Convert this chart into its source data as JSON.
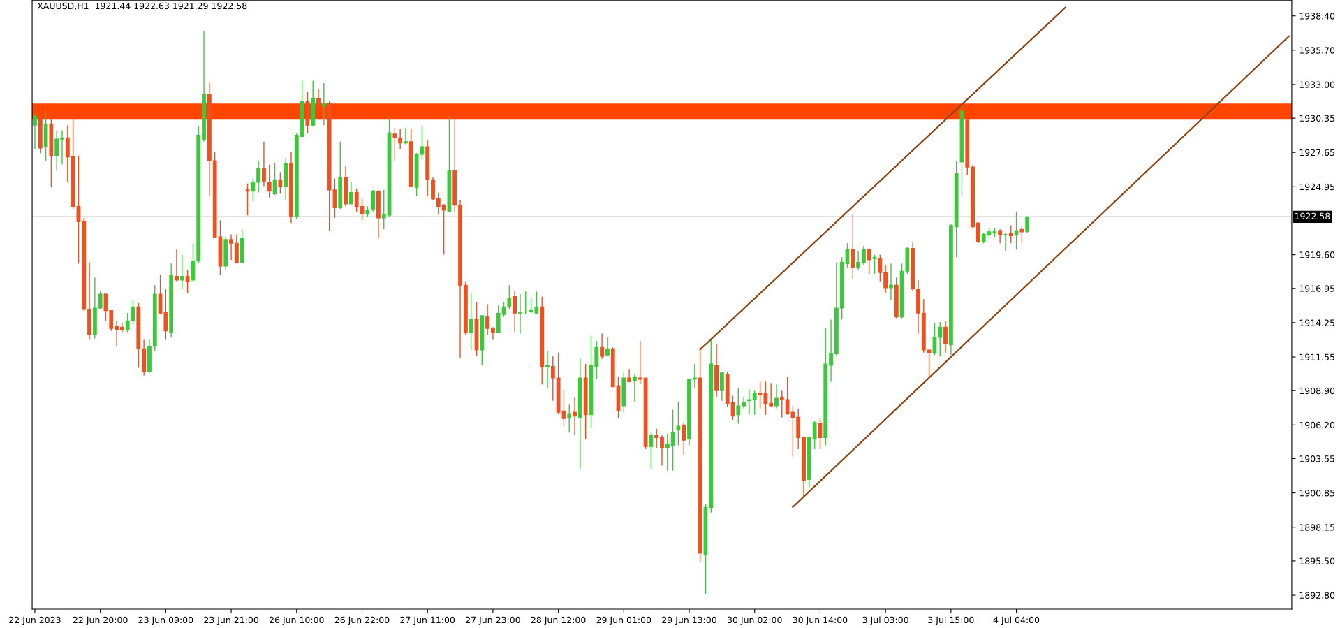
{
  "chart_data": {
    "type": "candlestick",
    "title": "XAUUSD,H1  1921.44 1922.63 1921.29 1922.58",
    "categories": [
      "22 Jun 2023",
      null,
      null,
      null,
      null,
      null,
      null,
      null,
      null,
      null,
      null,
      null,
      "22 Jun 20:00",
      null,
      null,
      null,
      null,
      null,
      null,
      null,
      null,
      null,
      null,
      null,
      "23 Jun 09:00",
      null,
      null,
      null,
      null,
      null,
      null,
      null,
      null,
      null,
      null,
      null,
      "23 Jun 21:00",
      null,
      null,
      null,
      null,
      null,
      null,
      null,
      null,
      null,
      null,
      null,
      "26 Jun 10:00",
      null,
      null,
      null,
      null,
      null,
      null,
      null,
      null,
      null,
      null,
      null,
      "26 Jun 22:00",
      null,
      null,
      null,
      null,
      null,
      null,
      null,
      null,
      null,
      null,
      null,
      "27 Jun 11:00",
      null,
      null,
      null,
      null,
      null,
      null,
      null,
      null,
      null,
      null,
      null,
      "27 Jun 23:00",
      null,
      null,
      null,
      null,
      null,
      null,
      null,
      null,
      null,
      null,
      null,
      "28 Jun 12:00",
      null,
      null,
      null,
      null,
      null,
      null,
      null,
      null,
      null,
      null,
      null,
      "29 Jun 01:00",
      null,
      null,
      null,
      null,
      null,
      null,
      null,
      null,
      null,
      null,
      null,
      "29 Jun 13:00",
      null,
      null,
      null,
      null,
      null,
      null,
      null,
      null,
      null,
      null,
      null,
      "30 Jun 02:00",
      null,
      null,
      null,
      null,
      null,
      null,
      null,
      null,
      null,
      null,
      null,
      "30 Jun 14:00",
      null,
      null,
      null,
      null,
      null,
      null,
      null,
      null,
      null,
      null,
      null,
      "3 Jul 03:00",
      null,
      null,
      null,
      null,
      null,
      null,
      null,
      null,
      null,
      null,
      null,
      "3 Jul 15:00",
      null,
      null,
      null,
      null,
      null,
      null,
      null,
      null,
      null,
      null,
      null,
      "4 Jul 04:00",
      null,
      null,
      null,
      null,
      null,
      null,
      null,
      null,
      null,
      null,
      null,
      null,
      null,
      null,
      null,
      null,
      null,
      null,
      null,
      null,
      null,
      null,
      null,
      null,
      null,
      null,
      null,
      null,
      null,
      null,
      null,
      null,
      null,
      null,
      null,
      null,
      null,
      null,
      null,
      null,
      null,
      null,
      null,
      null,
      null,
      null,
      null,
      null,
      null,
      null
    ],
    "ohlc": [
      [
        1929.8,
        1930.7,
        1927.9,
        1930.5
      ],
      [
        1930.5,
        1931.5,
        1927.6,
        1928.0
      ],
      [
        1928.1,
        1930.9,
        1927.0,
        1929.9
      ],
      [
        1929.9,
        1931.5,
        1924.9,
        1927.4
      ],
      [
        1927.4,
        1929.4,
        1926.2,
        1928.7
      ],
      [
        1928.7,
        1929.4,
        1926.7,
        1928.8
      ],
      [
        1928.8,
        1929.8,
        1925.3,
        1927.3
      ],
      [
        1927.3,
        1930.9,
        1923.2,
        1923.4
      ],
      [
        1923.4,
        1927.4,
        1918.9,
        1922.2
      ],
      [
        1922.2,
        1922.5,
        1915.2,
        1915.3
      ],
      [
        1915.3,
        1919.0,
        1912.9,
        1913.3
      ],
      [
        1913.3,
        1917.8,
        1913.0,
        1915.4
      ],
      [
        1915.4,
        1916.7,
        1915.3,
        1916.5
      ],
      [
        1916.5,
        1916.6,
        1914.4,
        1915.2
      ],
      [
        1915.2,
        1915.2,
        1913.6,
        1913.8
      ],
      [
        1914.0,
        1914.4,
        1912.4,
        1913.7
      ],
      [
        1913.9,
        1914.2,
        1913.5,
        1913.7
      ],
      [
        1913.7,
        1915.0,
        1913.5,
        1914.4
      ],
      [
        1914.4,
        1916.0,
        1914.1,
        1915.5
      ],
      [
        1915.5,
        1915.8,
        1910.7,
        1912.2
      ],
      [
        1912.2,
        1912.9,
        1910.1,
        1910.4
      ],
      [
        1910.4,
        1912.9,
        1910.3,
        1912.4
      ],
      [
        1912.4,
        1917.2,
        1912.0,
        1916.5
      ],
      [
        1916.5,
        1918.0,
        1914.9,
        1915.0
      ],
      [
        1915.1,
        1916.9,
        1912.9,
        1913.6
      ],
      [
        1913.5,
        1918.9,
        1913.1,
        1918.0
      ],
      [
        1917.9,
        1920.0,
        1917.5,
        1917.6
      ],
      [
        1917.6,
        1919.6,
        1916.9,
        1917.9
      ],
      [
        1917.9,
        1918.4,
        1916.6,
        1917.5
      ],
      [
        1917.6,
        1920.5,
        1917.5,
        1919.1
      ],
      [
        1919.1,
        1929.7,
        1918.9,
        1929.0
      ],
      [
        1928.7,
        1937.2,
        1928.5,
        1932.2
      ],
      [
        1932.2,
        1933.1,
        1924.2,
        1927.0
      ],
      [
        1927.0,
        1927.7,
        1920.9,
        1921.0
      ],
      [
        1921.0,
        1922.3,
        1918.0,
        1918.7
      ],
      [
        1918.7,
        1921.0,
        1918.4,
        1920.8
      ],
      [
        1920.8,
        1921.2,
        1919.2,
        1920.5
      ],
      [
        1920.5,
        1921.2,
        1918.9,
        1919.0
      ],
      [
        1919.0,
        1921.6,
        1919.0,
        1920.9
      ],
      [
        1924.7,
        1925.2,
        1922.7,
        1924.6
      ],
      [
        1924.6,
        1925.6,
        1923.8,
        1925.3
      ],
      [
        1925.3,
        1927.0,
        1924.5,
        1926.4
      ],
      [
        1926.4,
        1928.5,
        1925.0,
        1925.4
      ],
      [
        1925.3,
        1926.7,
        1924.1,
        1924.6
      ],
      [
        1924.4,
        1926.8,
        1924.3,
        1925.5
      ],
      [
        1925.5,
        1926.1,
        1924.4,
        1925.0
      ],
      [
        1925.0,
        1927.2,
        1923.9,
        1926.8
      ],
      [
        1926.8,
        1927.7,
        1922.1,
        1922.6
      ],
      [
        1922.6,
        1929.2,
        1922.4,
        1929.0
      ],
      [
        1928.9,
        1933.3,
        1928.9,
        1931.7
      ],
      [
        1931.7,
        1932.4,
        1929.2,
        1929.8
      ],
      [
        1929.8,
        1933.3,
        1929.7,
        1931.9
      ],
      [
        1931.9,
        1932.6,
        1931.0,
        1931.3
      ],
      [
        1931.3,
        1933.1,
        1929.8,
        1931.5
      ],
      [
        1931.5,
        1931.7,
        1921.5,
        1924.7
      ],
      [
        1924.7,
        1925.6,
        1922.5,
        1923.3
      ],
      [
        1923.3,
        1928.5,
        1923.2,
        1925.7
      ],
      [
        1925.7,
        1926.6,
        1923.4,
        1923.6
      ],
      [
        1923.6,
        1925.3,
        1923.6,
        1924.5
      ],
      [
        1924.5,
        1924.8,
        1923.0,
        1923.4
      ],
      [
        1923.4,
        1924.0,
        1922.3,
        1922.8
      ],
      [
        1922.8,
        1923.4,
        1922.6,
        1923.1
      ],
      [
        1923.2,
        1924.7,
        1923.0,
        1924.6
      ],
      [
        1924.6,
        1924.7,
        1920.9,
        1922.5
      ],
      [
        1922.5,
        1924.7,
        1921.6,
        1922.8
      ],
      [
        1922.7,
        1930.4,
        1922.6,
        1929.2
      ],
      [
        1929.1,
        1929.6,
        1927.0,
        1928.8
      ],
      [
        1928.8,
        1929.5,
        1927.9,
        1928.4
      ],
      [
        1928.4,
        1929.6,
        1928.3,
        1928.5
      ],
      [
        1928.5,
        1929.5,
        1924.9,
        1925.0
      ],
      [
        1924.9,
        1927.6,
        1924.2,
        1927.5
      ],
      [
        1927.5,
        1929.7,
        1927.1,
        1928.1
      ],
      [
        1928.1,
        1928.6,
        1924.2,
        1925.5
      ],
      [
        1925.5,
        1925.7,
        1923.9,
        1924.0
      ],
      [
        1924.0,
        1924.5,
        1922.8,
        1923.4
      ],
      [
        1923.5,
        1923.6,
        1919.6,
        1923.1
      ],
      [
        1923.0,
        1930.5,
        1923.0,
        1926.2
      ],
      [
        1926.2,
        1930.6,
        1922.9,
        1923.5
      ],
      [
        1923.5,
        1923.9,
        1911.5,
        1917.2
      ],
      [
        1917.2,
        1917.5,
        1913.3,
        1913.5
      ],
      [
        1913.5,
        1916.6,
        1912.1,
        1914.5
      ],
      [
        1914.5,
        1915.9,
        1911.6,
        1912.1
      ],
      [
        1912.1,
        1914.8,
        1910.9,
        1914.8
      ],
      [
        1914.7,
        1915.7,
        1913.3,
        1913.8
      ],
      [
        1913.8,
        1913.9,
        1912.9,
        1913.5
      ],
      [
        1913.5,
        1915.6,
        1913.5,
        1915.0
      ],
      [
        1914.9,
        1915.9,
        1914.7,
        1915.5
      ],
      [
        1915.5,
        1917.2,
        1915.3,
        1916.2
      ],
      [
        1916.3,
        1916.7,
        1913.5,
        1915.0
      ],
      [
        1915.0,
        1916.5,
        1913.4,
        1915.1
      ],
      [
        1915.1,
        1916.7,
        1914.9,
        1915.1
      ],
      [
        1915.1,
        1916.2,
        1915.0,
        1915.2
      ],
      [
        1915.0,
        1916.7,
        1914.9,
        1915.5
      ],
      [
        1915.5,
        1916.3,
        1909.4,
        1910.8
      ],
      [
        1910.8,
        1912.0,
        1909.1,
        1910.9
      ],
      [
        1910.8,
        1911.6,
        1908.1,
        1909.9
      ],
      [
        1909.9,
        1911.9,
        1907.1,
        1907.2
      ],
      [
        1907.3,
        1909.0,
        1906.1,
        1906.7
      ],
      [
        1906.8,
        1907.8,
        1905.6,
        1907.1
      ],
      [
        1907.2,
        1908.4,
        1905.4,
        1906.9
      ],
      [
        1906.8,
        1911.5,
        1902.7,
        1909.9
      ],
      [
        1909.9,
        1911.0,
        1905.1,
        1907.0
      ],
      [
        1907.0,
        1913.2,
        1906.0,
        1910.9
      ],
      [
        1910.8,
        1912.8,
        1909.8,
        1912.3
      ],
      [
        1912.3,
        1913.4,
        1911.4,
        1911.6
      ],
      [
        1911.7,
        1913.1,
        1911.6,
        1912.2
      ],
      [
        1912.2,
        1912.3,
        1909.2,
        1909.2
      ],
      [
        1909.3,
        1910.0,
        1906.7,
        1907.3
      ],
      [
        1907.7,
        1910.4,
        1907.2,
        1909.9
      ],
      [
        1909.9,
        1910.6,
        1909.6,
        1909.6
      ],
      [
        1909.7,
        1910.2,
        1908.0,
        1910.0
      ],
      [
        1909.9,
        1912.8,
        1909.4,
        1909.8
      ],
      [
        1909.9,
        1909.9,
        1904.3,
        1904.5
      ],
      [
        1904.5,
        1905.6,
        1902.7,
        1905.4
      ],
      [
        1905.4,
        1905.9,
        1904.4,
        1905.2
      ],
      [
        1905.2,
        1905.4,
        1903.0,
        1904.4
      ],
      [
        1904.4,
        1905.5,
        1902.6,
        1904.7
      ],
      [
        1904.6,
        1907.4,
        1902.6,
        1905.6
      ],
      [
        1905.8,
        1908.0,
        1904.6,
        1906.1
      ],
      [
        1906.2,
        1906.4,
        1903.8,
        1905.0
      ],
      [
        1905.1,
        1909.8,
        1904.6,
        1909.8
      ],
      [
        1909.8,
        1911.0,
        1909.1,
        1909.9
      ],
      [
        1909.9,
        1912.3,
        1895.4,
        1896.1
      ],
      [
        1896.0,
        1900.0,
        1892.9,
        1899.7
      ],
      [
        1899.7,
        1912.9,
        1899.3,
        1911.0
      ],
      [
        1910.9,
        1912.6,
        1908.4,
        1908.9
      ],
      [
        1908.9,
        1910.4,
        1908.1,
        1910.3
      ],
      [
        1910.2,
        1910.4,
        1907.6,
        1907.9
      ],
      [
        1908.0,
        1908.5,
        1906.6,
        1906.9
      ],
      [
        1907.0,
        1909.1,
        1906.3,
        1907.7
      ],
      [
        1907.7,
        1908.4,
        1907.5,
        1908.0
      ],
      [
        1908.1,
        1909.0,
        1907.0,
        1908.2
      ],
      [
        1908.2,
        1908.9,
        1907.0,
        1908.7
      ],
      [
        1908.7,
        1909.6,
        1907.5,
        1908.6
      ],
      [
        1908.7,
        1909.6,
        1907.0,
        1907.9
      ],
      [
        1907.9,
        1909.5,
        1907.6,
        1907.7
      ],
      [
        1907.7,
        1909.4,
        1907.5,
        1908.3
      ],
      [
        1908.4,
        1908.9,
        1906.8,
        1908.2
      ],
      [
        1908.2,
        1910.0,
        1907.0,
        1907.1
      ],
      [
        1907.2,
        1907.7,
        1903.7,
        1906.8
      ],
      [
        1906.8,
        1907.5,
        1904.3,
        1905.2
      ],
      [
        1905.2,
        1905.3,
        1900.6,
        1901.8
      ],
      [
        1901.9,
        1905.2,
        1901.3,
        1905.2
      ],
      [
        1905.1,
        1906.5,
        1904.3,
        1906.4
      ],
      [
        1906.3,
        1906.7,
        1904.3,
        1905.2
      ],
      [
        1905.2,
        1913.8,
        1904.6,
        1911.0
      ],
      [
        1910.9,
        1914.5,
        1909.6,
        1911.8
      ],
      [
        1911.8,
        1919.0,
        1911.6,
        1915.4
      ],
      [
        1915.4,
        1919.4,
        1914.5,
        1919.0
      ],
      [
        1918.9,
        1920.5,
        1918.6,
        1920.0
      ],
      [
        1920.0,
        1922.8,
        1917.7,
        1918.6
      ],
      [
        1918.6,
        1919.9,
        1918.4,
        1919.0
      ],
      [
        1919.0,
        1920.3,
        1918.8,
        1920.0
      ],
      [
        1920.0,
        1920.1,
        1918.1,
        1919.2
      ],
      [
        1919.3,
        1919.6,
        1918.1,
        1919.4
      ],
      [
        1919.3,
        1919.6,
        1917.5,
        1918.2
      ],
      [
        1918.2,
        1918.8,
        1916.6,
        1917.0
      ],
      [
        1917.0,
        1918.9,
        1916.0,
        1917.2
      ],
      [
        1917.2,
        1917.8,
        1914.6,
        1914.7
      ],
      [
        1914.7,
        1918.9,
        1914.6,
        1918.3
      ],
      [
        1918.3,
        1920.2,
        1918.1,
        1920.1
      ],
      [
        1920.1,
        1920.6,
        1916.7,
        1916.9
      ],
      [
        1916.9,
        1917.6,
        1913.4,
        1915.0
      ],
      [
        1915.0,
        1916.1,
        1911.9,
        1912.1
      ],
      [
        1912.1,
        1912.2,
        1910.0,
        1911.9
      ],
      [
        1911.9,
        1914.2,
        1911.7,
        1913.1
      ],
      [
        1913.1,
        1914.3,
        1911.6,
        1913.9
      ],
      [
        1913.9,
        1914.4,
        1911.9,
        1912.6
      ],
      [
        1912.5,
        1922.0,
        1911.7,
        1921.9
      ],
      [
        1921.8,
        1927.0,
        1919.4,
        1926.0
      ],
      [
        1926.9,
        1931.2,
        1924.2,
        1930.9
      ],
      [
        1930.2,
        1930.2,
        1925.9,
        1926.5
      ],
      [
        1926.5,
        1926.7,
        1921.7,
        1921.8
      ],
      [
        1922.1,
        1922.1,
        1920.5,
        1920.6
      ],
      [
        1920.6,
        1921.3,
        1920.5,
        1921.2
      ],
      [
        1921.2,
        1921.7,
        1920.9,
        1921.4
      ],
      [
        1921.3,
        1921.7,
        1921.0,
        1921.4
      ],
      [
        1921.5,
        1921.6,
        1920.5,
        1921.2
      ],
      [
        1921.2,
        1921.3,
        1919.9,
        1921.2
      ],
      [
        1921.3,
        1921.9,
        1920.5,
        1921.1
      ],
      [
        1921.2,
        1923.0,
        1920.0,
        1921.5
      ],
      [
        1921.6,
        1921.8,
        1920.5,
        1921.4
      ],
      [
        1921.44,
        1922.63,
        1921.29,
        1922.58
      ],
      null,
      null,
      null,
      null,
      null,
      null,
      null,
      null,
      null,
      null,
      null,
      null,
      null,
      null,
      null,
      null,
      null,
      null,
      null,
      null,
      null,
      null,
      null,
      null,
      null,
      null,
      null,
      null,
      null,
      null,
      null,
      null,
      null,
      null,
      null,
      null,
      null,
      null,
      null,
      null,
      null,
      null,
      null,
      null,
      null,
      null,
      null,
      null
    ],
    "colors": [
      "#3cc83c",
      "#ee5020",
      "#3cc83c",
      "#ee5020",
      "#3cc83c",
      "#3cc83c",
      "#ee5020",
      "#ee5020",
      "#ee5020",
      "#ee5020",
      "#ee5020",
      "#3cc83c",
      "#3cc83c",
      "#ee5020",
      "#ee5020",
      "#ee5020",
      "#ee5020",
      "#3cc83c",
      "#3cc83c",
      "#ee5020",
      "#ee5020",
      "#3cc83c",
      "#3cc83c",
      "#ee5020",
      "#ee5020",
      "#3cc83c",
      "#ee5020",
      "#3cc83c",
      "#ee5020",
      "#3cc83c",
      "#3cc83c",
      "#3cc83c",
      "#ee5020",
      "#ee5020",
      "#ee5020",
      "#3cc83c",
      "#ee5020",
      "#ee5020",
      "#3cc83c",
      "#ee5020",
      "#3cc83c",
      "#3cc83c",
      "#ee5020",
      "#ee5020",
      "#3cc83c",
      "#ee5020",
      "#3cc83c",
      "#ee5020",
      "#3cc83c",
      "#3cc83c",
      "#ee5020",
      "#3cc83c",
      "#ee5020",
      "#3cc83c",
      "#ee5020",
      "#ee5020",
      "#3cc83c",
      "#ee5020",
      "#3cc83c",
      "#ee5020",
      "#ee5020",
      "#3cc83c",
      "#3cc83c",
      "#ee5020",
      "#3cc83c",
      "#3cc83c",
      "#ee5020",
      "#ee5020",
      "#3cc83c",
      "#ee5020",
      "#3cc83c",
      "#3cc83c",
      "#ee5020",
      "#ee5020",
      "#ee5020",
      "#ee5020",
      "#3cc83c",
      "#ee5020",
      "#ee5020",
      "#ee5020",
      "#3cc83c",
      "#ee5020",
      "#3cc83c",
      "#ee5020",
      "#ee5020",
      "#3cc83c",
      "#3cc83c",
      "#3cc83c",
      "#ee5020",
      "#3cc83c",
      "#3cc83c",
      "#3cc83c",
      "#3cc83c",
      "#ee5020",
      "#3cc83c",
      "#ee5020",
      "#ee5020",
      "#ee5020",
      "#3cc83c",
      "#ee5020",
      "#3cc83c",
      "#ee5020",
      "#3cc83c",
      "#3cc83c",
      "#ee5020",
      "#3cc83c",
      "#ee5020",
      "#ee5020",
      "#3cc83c",
      "#ee5020",
      "#3cc83c",
      "#ee5020",
      "#ee5020",
      "#3cc83c",
      "#ee5020",
      "#ee5020",
      "#3cc83c",
      "#3cc83c",
      "#3cc83c",
      "#ee5020",
      "#3cc83c",
      "#3cc83c",
      "#ee5020",
      "#3cc83c",
      "#3cc83c",
      "#ee5020",
      "#3cc83c",
      "#ee5020",
      "#ee5020",
      "#3cc83c",
      "#3cc83c",
      "#3cc83c",
      "#3cc83c",
      "#ee5020",
      "#ee5020",
      "#ee5020",
      "#3cc83c",
      "#ee5020",
      "#ee5020",
      "#ee5020",
      "#ee5020",
      "#ee5020",
      "#3cc83c",
      "#3cc83c",
      "#ee5020",
      "#3cc83c",
      "#3cc83c",
      "#3cc83c",
      "#3cc83c",
      "#3cc83c",
      "#ee5020",
      "#3cc83c",
      "#3cc83c",
      "#ee5020",
      "#3cc83c",
      "#ee5020",
      "#ee5020",
      "#3cc83c",
      "#ee5020",
      "#3cc83c",
      "#3cc83c",
      "#ee5020",
      "#ee5020",
      "#ee5020",
      "#ee5020",
      "#3cc83c",
      "#3cc83c",
      "#ee5020",
      "#3cc83c",
      "#3cc83c",
      "#3cc83c",
      "#ee5020",
      "#ee5020",
      "#ee5020",
      "#3cc83c",
      "#3cc83c",
      "#3cc83c",
      "#ee5020",
      "#3cc83c",
      "#ee5020",
      "#3cc83c",
      "#ee5020",
      "#3cc83c",
      null,
      null,
      null,
      null,
      null,
      null,
      null,
      null,
      null,
      null,
      null,
      null,
      null,
      null,
      null,
      null,
      null,
      null,
      null,
      null,
      null,
      null,
      null,
      null,
      null,
      null,
      null,
      null,
      null,
      null,
      null,
      null,
      null,
      null,
      null,
      null,
      null,
      null,
      null,
      null,
      null,
      null,
      null,
      null,
      null,
      null,
      null,
      null
    ],
    "series": [
      {
        "type": "line",
        "color": "#8b4513",
        "values": [
          null,
          null,
          null,
          null,
          null,
          null,
          null,
          null,
          null,
          null,
          null,
          null,
          null,
          null,
          null,
          null,
          null,
          null,
          null,
          null,
          null,
          null,
          null,
          null,
          null,
          null,
          null,
          null,
          null,
          null,
          null,
          null,
          null,
          null,
          null,
          null,
          null,
          null,
          null,
          null,
          null,
          null,
          null,
          null,
          null,
          null,
          null,
          null,
          null,
          null,
          null,
          null,
          null,
          null,
          null,
          null,
          null,
          null,
          null,
          null,
          null,
          null,
          null,
          null,
          null,
          null,
          null,
          null,
          null,
          null,
          null,
          null,
          null,
          null,
          null,
          null,
          null,
          null,
          null,
          null,
          null,
          null,
          null,
          null,
          null,
          null,
          null,
          null,
          null,
          null,
          null,
          null,
          null,
          null,
          null,
          null,
          null,
          null,
          null,
          null,
          null,
          null,
          null,
          null,
          null,
          null,
          null,
          null,
          null,
          null,
          null,
          null,
          null,
          null,
          null,
          null,
          null,
          null,
          null,
          null,
          null,
          null,
          1912.14,
          null,
          null,
          null,
          null,
          null,
          null,
          null,
          null,
          null,
          null,
          null,
          null,
          null,
          null,
          null,
          null,
          null,
          null,
          null,
          null,
          null,
          null,
          null,
          null,
          null,
          null,
          null,
          null,
          null,
          null,
          null,
          null,
          null,
          null,
          null,
          null,
          null,
          null,
          null,
          null,
          null,
          null,
          null,
          null,
          null,
          null,
          null,
          null,
          null,
          null,
          null,
          null,
          null,
          null,
          null,
          null,
          null,
          null,
          null,
          null,
          null,
          null,
          null,
          null,
          null,
          null,
          1939.07,
          null,
          null,
          null,
          null,
          null,
          null,
          null,
          null,
          null,
          null,
          null,
          null,
          null,
          null,
          null,
          null,
          null,
          null,
          null,
          null,
          null,
          null,
          null,
          null,
          null,
          null,
          null,
          null,
          null,
          null,
          null,
          null,
          null,
          null,
          null,
          null,
          null,
          null,
          null,
          null,
          null
        ]
      },
      {
        "type": "line",
        "color": "#8b4513",
        "values": [
          null,
          null,
          null,
          null,
          null,
          null,
          null,
          null,
          null,
          null,
          null,
          null,
          null,
          null,
          null,
          null,
          null,
          null,
          null,
          null,
          null,
          null,
          null,
          null,
          null,
          null,
          null,
          null,
          null,
          null,
          null,
          null,
          null,
          null,
          null,
          null,
          null,
          null,
          null,
          null,
          null,
          null,
          null,
          null,
          null,
          null,
          null,
          null,
          null,
          null,
          null,
          null,
          null,
          null,
          null,
          null,
          null,
          null,
          null,
          null,
          null,
          null,
          null,
          null,
          null,
          null,
          null,
          null,
          null,
          null,
          null,
          null,
          null,
          null,
          null,
          null,
          null,
          null,
          null,
          null,
          null,
          null,
          null,
          null,
          null,
          null,
          null,
          null,
          null,
          null,
          null,
          null,
          null,
          null,
          null,
          null,
          null,
          null,
          null,
          null,
          null,
          null,
          null,
          null,
          null,
          null,
          null,
          null,
          null,
          null,
          null,
          null,
          null,
          null,
          null,
          null,
          null,
          null,
          null,
          null,
          null,
          null,
          null,
          null,
          null,
          null,
          null,
          null,
          null,
          null,
          null,
          null,
          null,
          null,
          null,
          null,
          null,
          null,
          null,
          1899.74,
          null,
          null,
          null,
          null,
          null,
          null,
          null,
          null,
          null,
          null,
          null,
          null,
          null,
          null,
          null,
          null,
          null,
          null,
          null,
          null,
          null,
          null,
          null,
          null,
          null,
          null,
          null,
          null,
          null,
          null,
          null,
          null,
          null,
          null,
          null,
          null,
          null,
          null,
          null,
          null,
          null,
          null,
          null,
          null,
          null,
          null,
          null,
          null,
          null,
          null,
          null,
          null,
          null,
          null,
          null,
          null,
          null,
          null,
          null,
          null,
          null,
          null,
          null,
          null,
          null,
          null,
          null,
          null,
          null,
          null,
          null,
          null,
          null,
          null,
          null,
          null,
          null,
          null,
          null,
          null,
          null,
          null,
          null,
          null,
          null,
          null,
          null,
          null,
          null,
          null,
          1936.8
        ]
      }
    ],
    "line_style": "solid",
    "ylim": [
      1891.7,
      1939.6
    ],
    "yticks": [
      {
        "value": 1892.8,
        "label": "1892.80"
      },
      {
        "value": 1895.5,
        "label": "1895.50"
      },
      {
        "value": 1898.15,
        "label": "1898.15"
      },
      {
        "value": 1900.85,
        "label": "1900.85"
      },
      {
        "value": 1903.55,
        "label": "1903.55"
      },
      {
        "value": 1906.2,
        "label": "1906.20"
      },
      {
        "value": 1908.9,
        "label": "1908.90"
      },
      {
        "value": 1911.55,
        "label": "1911.55"
      },
      {
        "value": 1914.25,
        "label": "1914.25"
      },
      {
        "value": 1916.95,
        "label": "1916.95"
      },
      {
        "value": 1919.6,
        "label": "1919.60"
      },
      {
        "value": 1924.95,
        "label": "1924.95"
      },
      {
        "value": 1927.65,
        "label": "1927.65"
      },
      {
        "value": 1930.35,
        "label": "1930.35"
      },
      {
        "value": 1933.0,
        "label": "1933.00"
      },
      {
        "value": 1935.7,
        "label": "1935.70"
      },
      {
        "value": 1938.4,
        "label": "1938.40"
      }
    ],
    "ref_lines": [
      {
        "axis": "y",
        "value": 1922.58,
        "label": "1922.58",
        "color": "#909090"
      }
    ],
    "bands": [
      {
        "axis": "y",
        "from": 1930.23,
        "to": 1931.5,
        "label": null,
        "color": "#ff4500"
      }
    ],
    "grid": false,
    "legend": false
  }
}
